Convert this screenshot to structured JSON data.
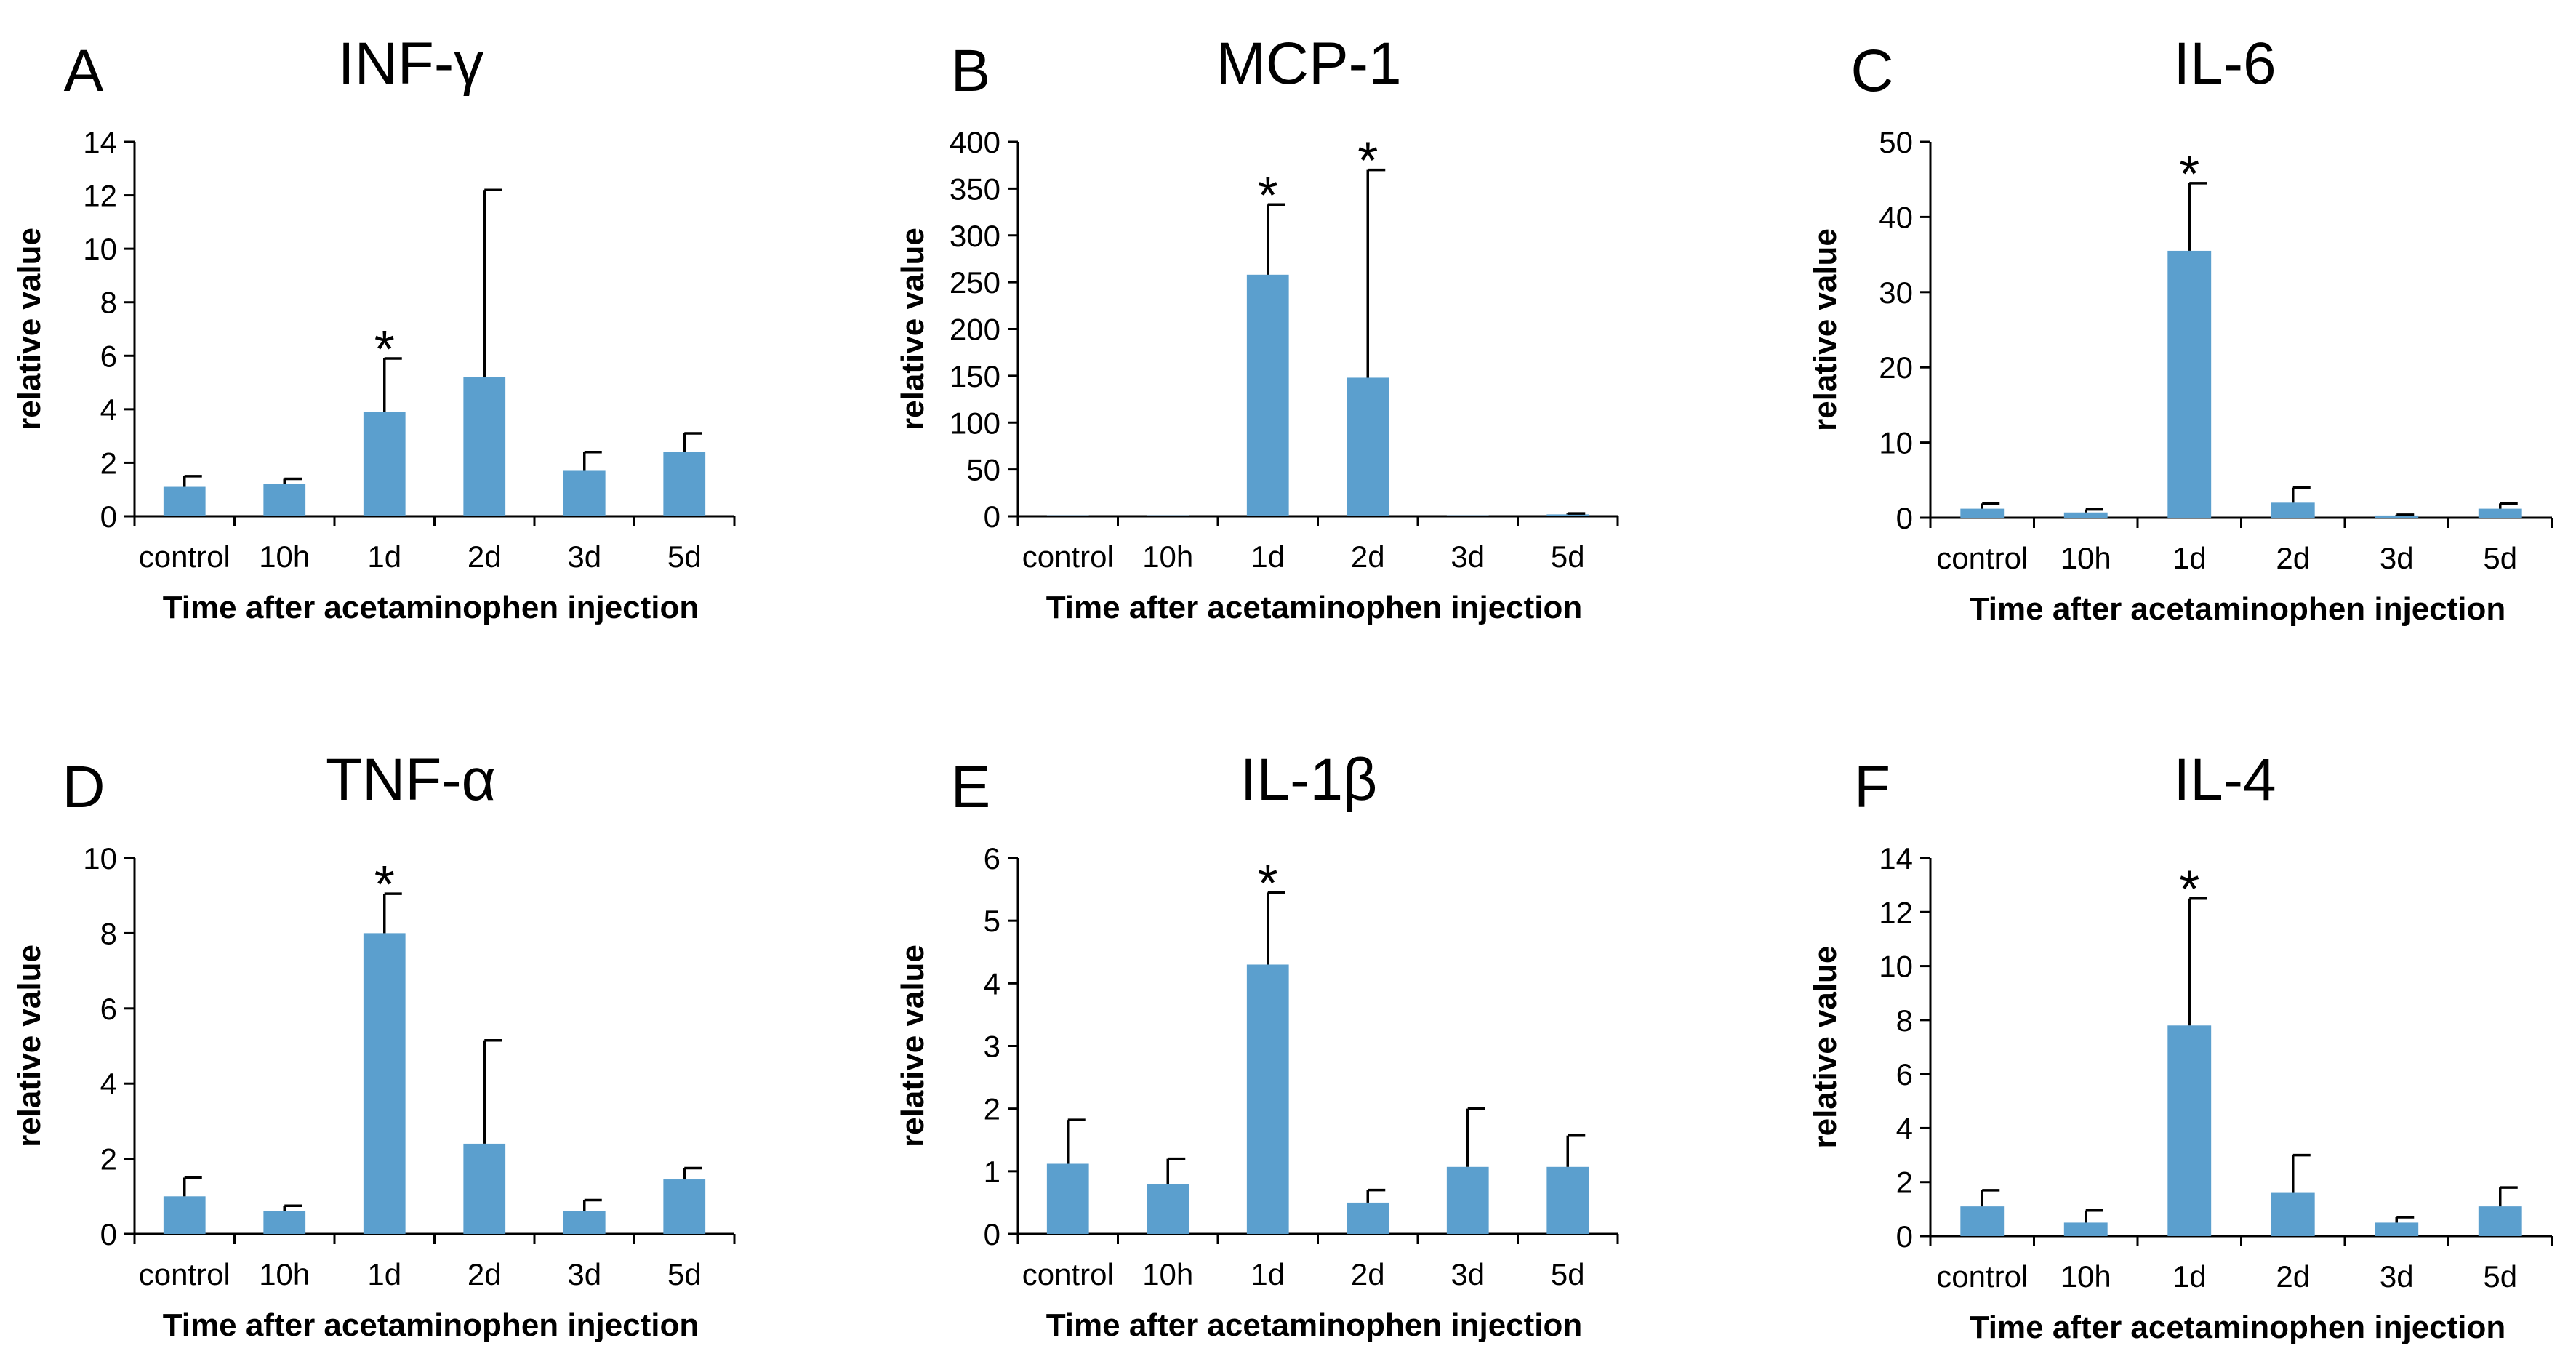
{
  "figure": {
    "chart_data": [
      {
        "type": "bar",
        "panel": "A",
        "title": "INF-γ",
        "xlabel": "Time after acetaminophen injection",
        "ylabel": "relative value",
        "ylim": [
          0,
          14
        ],
        "yticks": [
          "0",
          "2",
          "4",
          "6",
          "8",
          "10",
          "12",
          "14"
        ],
        "categories": [
          "control",
          "10h",
          "1d",
          "2d",
          "3d",
          "5d"
        ],
        "values": [
          1.1,
          1.2,
          3.9,
          5.2,
          1.7,
          2.4
        ],
        "errors": [
          0.4,
          0.2,
          2.0,
          7.0,
          0.7,
          0.7
        ],
        "significance": [
          "",
          "",
          "*",
          "",
          "",
          ""
        ]
      },
      {
        "type": "bar",
        "panel": "B",
        "title": "MCP-1",
        "xlabel": "Time after acetaminophen injection",
        "ylabel": "relative value",
        "ylim": [
          0,
          400
        ],
        "yticks": [
          "0",
          "50",
          "100",
          "150",
          "200",
          "250",
          "300",
          "350",
          "400"
        ],
        "categories": [
          "control",
          "10h",
          "1d",
          "2d",
          "3d",
          "5d"
        ],
        "values": [
          1,
          1,
          258,
          148,
          1,
          2
        ],
        "errors": [
          0,
          0,
          75,
          222,
          0,
          1
        ],
        "significance": [
          "",
          "",
          "*",
          "*",
          "",
          ""
        ]
      },
      {
        "type": "bar",
        "panel": "C",
        "title": "IL-6",
        "xlabel": "Time after acetaminophen injection",
        "ylabel": "relative value",
        "ylim": [
          0,
          50
        ],
        "yticks": [
          "0",
          "10",
          "20",
          "30",
          "40",
          "50"
        ],
        "categories": [
          "control",
          "10h",
          "1d",
          "2d",
          "3d",
          "5d"
        ],
        "values": [
          1.2,
          0.7,
          35.5,
          2.0,
          0.3,
          1.2
        ],
        "errors": [
          0.7,
          0.4,
          9.0,
          2.0,
          0.1,
          0.7
        ],
        "significance": [
          "",
          "",
          "*",
          "",
          "",
          ""
        ]
      },
      {
        "type": "bar",
        "panel": "D",
        "title": "TNF-α",
        "xlabel": "Time after acetaminophen injection",
        "ylabel": "relative value",
        "ylim": [
          0,
          10
        ],
        "yticks": [
          "0",
          "2",
          "4",
          "6",
          "8",
          "10"
        ],
        "categories": [
          "control",
          "10h",
          "1d",
          "2d",
          "3d",
          "5d"
        ],
        "values": [
          1.0,
          0.6,
          8.0,
          2.4,
          0.6,
          1.45
        ],
        "errors": [
          0.5,
          0.15,
          1.05,
          2.75,
          0.3,
          0.3
        ],
        "significance": [
          "",
          "",
          "*",
          "",
          "",
          ""
        ]
      },
      {
        "type": "bar",
        "panel": "E",
        "title": "IL-1β",
        "xlabel": "Time after acetaminophen injection",
        "ylabel": "relative value",
        "ylim": [
          0,
          6
        ],
        "yticks": [
          "0",
          "1",
          "2",
          "3",
          "4",
          "5",
          "6"
        ],
        "categories": [
          "control",
          "10h",
          "1d",
          "2d",
          "3d",
          "5d"
        ],
        "values": [
          1.12,
          0.8,
          4.3,
          0.5,
          1.07,
          1.07
        ],
        "errors": [
          0.7,
          0.4,
          1.15,
          0.2,
          0.93,
          0.5
        ],
        "significance": [
          "",
          "",
          "*",
          "",
          "",
          ""
        ]
      },
      {
        "type": "bar",
        "panel": "F",
        "title": "IL-4",
        "xlabel": "Time after acetaminophen injection",
        "ylabel": "relative value",
        "ylim": [
          0,
          14
        ],
        "yticks": [
          "0",
          "2",
          "4",
          "6",
          "8",
          "10",
          "12",
          "14"
        ],
        "categories": [
          "control",
          "10h",
          "1d",
          "2d",
          "3d",
          "5d"
        ],
        "values": [
          1.1,
          0.5,
          7.8,
          1.6,
          0.5,
          1.1
        ],
        "errors": [
          0.6,
          0.45,
          4.7,
          1.4,
          0.2,
          0.7
        ],
        "significance": [
          "",
          "",
          "*",
          "",
          "",
          ""
        ]
      }
    ],
    "colors": {
      "bar": "#5b9fce",
      "axis": "#000000"
    }
  }
}
